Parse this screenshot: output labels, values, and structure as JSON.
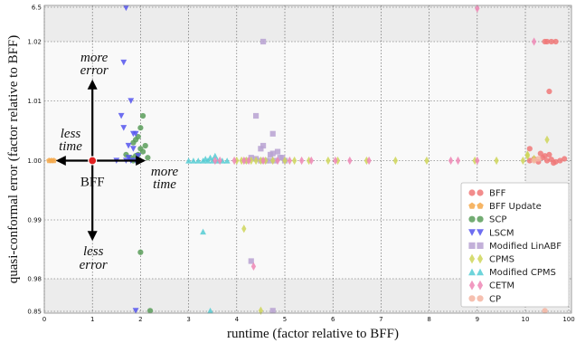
{
  "chart_data": {
    "type": "scatter",
    "xlabel": "runtime (factor relative to BFF)",
    "ylabel": "quasi-conformal error (factor relative to BFF)",
    "x_ticks": [
      {
        "value": 0,
        "label": "0"
      },
      {
        "value": 1,
        "label": "1"
      },
      {
        "value": 2,
        "label": "2"
      },
      {
        "value": 3,
        "label": "3"
      },
      {
        "value": 4,
        "label": "4"
      },
      {
        "value": 5,
        "label": "5"
      },
      {
        "value": 6,
        "label": "6"
      },
      {
        "value": 7,
        "label": "7"
      },
      {
        "value": 8,
        "label": "8"
      },
      {
        "value": 9,
        "label": "9"
      },
      {
        "value": 10,
        "label": "10"
      },
      {
        "value": 11,
        "label": "100"
      }
    ],
    "y_ticks": [
      {
        "value": 6.5,
        "label": "6.5"
      },
      {
        "value": 1.02,
        "label": "1.02"
      },
      {
        "value": 1.01,
        "label": "1.01"
      },
      {
        "value": 1.0,
        "label": "1.00"
      },
      {
        "value": 0.99,
        "label": "0.99"
      },
      {
        "value": 0.98,
        "label": "0.98"
      },
      {
        "value": 0.85,
        "label": "0.85"
      }
    ],
    "grid": true,
    "legend_position": "bottom-right",
    "annotations": {
      "center_label": "BFF",
      "up_line1": "more",
      "up_line2": "error",
      "down_line1": "less",
      "down_line2": "error",
      "left_line1": "less",
      "left_line2": "time",
      "right_line1": "more",
      "right_line2": "time"
    },
    "series": [
      {
        "name": "BFF",
        "marker": "circle",
        "color": "#f07878",
        "points": [
          [
            1.0,
            1.0
          ],
          [
            10.1,
            1.0
          ],
          [
            10.2,
            1.0003
          ],
          [
            10.3,
            0.9998
          ],
          [
            10.4,
            1.0005
          ],
          [
            10.5,
            1.0
          ],
          [
            10.6,
            1.0002
          ],
          [
            10.7,
            0.9998
          ],
          [
            10.8,
            1.0
          ],
          [
            10.9,
            1.0003
          ],
          [
            10.45,
            1.0008
          ],
          [
            10.55,
            1.001
          ],
          [
            10.35,
            1.0012
          ],
          [
            10.65,
            0.9996
          ],
          [
            10.5,
            1.0205
          ],
          [
            10.6,
            1.0205
          ],
          [
            10.7,
            1.0205
          ],
          [
            10.45,
            1.0205
          ],
          [
            10.55,
            1.0116
          ],
          [
            10.1,
            1.002
          ]
        ]
      },
      {
        "name": "BFF Update",
        "marker": "pentagon",
        "color": "#f5a84a",
        "points": [
          [
            0.1,
            1.0
          ],
          [
            0.15,
            1.0
          ],
          [
            0.2,
            1.0
          ]
        ]
      },
      {
        "name": "SCP",
        "marker": "circle",
        "color": "#5a9e5a",
        "points": [
          [
            1.85,
            1.0
          ],
          [
            1.9,
            1.0008
          ],
          [
            1.95,
            1.001
          ],
          [
            2.0,
            1.002
          ],
          [
            2.05,
            1.0015
          ],
          [
            1.8,
            1.0005
          ],
          [
            2.1,
            1.0025
          ],
          [
            1.95,
            1.004
          ],
          [
            2.0,
            1.0055
          ],
          [
            2.05,
            1.0075
          ],
          [
            1.85,
            1.003
          ],
          [
            2.0,
            0.9845
          ],
          [
            2.2,
            0.8525
          ],
          [
            1.9,
            1.0035
          ],
          [
            2.15,
            1.0005
          ],
          [
            1.7,
            1.001
          ]
        ]
      },
      {
        "name": "LSCM",
        "marker": "triangle-down",
        "color": "#5555ee",
        "points": [
          [
            1.7,
            6.4
          ],
          [
            1.65,
            1.0165
          ],
          [
            1.8,
            1.01
          ],
          [
            1.85,
            1.0045
          ],
          [
            1.9,
            1.0045
          ],
          [
            1.6,
            1.0075
          ],
          [
            1.65,
            1.0055
          ],
          [
            1.7,
            1.0
          ],
          [
            1.8,
            1.0
          ],
          [
            1.9,
            1.0
          ],
          [
            1.75,
            1.0005
          ],
          [
            1.95,
            1.0008
          ],
          [
            1.85,
            1.002
          ],
          [
            1.9,
            0.8525
          ],
          [
            1.5,
            1.0
          ],
          [
            1.75,
            1.0025
          ]
        ]
      },
      {
        "name": "Modified LinABF",
        "marker": "square",
        "color": "#b8a2d2",
        "points": [
          [
            4.55,
            1.0215
          ],
          [
            4.4,
            1.0075
          ],
          [
            4.75,
            1.0045
          ],
          [
            4.85,
            1.0015
          ],
          [
            4.5,
            1.002
          ],
          [
            4.7,
            1.001
          ],
          [
            4.3,
            1.0005
          ],
          [
            4.9,
            1.0005
          ],
          [
            4.5,
            1.0
          ],
          [
            4.6,
            1.0
          ],
          [
            4.7,
            1.0
          ],
          [
            4.8,
            1.0
          ],
          [
            5.0,
            1.0
          ],
          [
            4.2,
            1.0
          ],
          [
            4.55,
            1.0025
          ],
          [
            4.75,
            1.0012
          ],
          [
            4.4,
            1.0003
          ],
          [
            4.3,
            0.983
          ],
          [
            4.75,
            0.8525
          ],
          [
            4.95,
            1.0005
          ]
        ]
      },
      {
        "name": "CPMS",
        "marker": "diamond",
        "color": "#cfd65a",
        "points": [
          [
            4.15,
            0.9885
          ],
          [
            4.5,
            0.8525
          ],
          [
            4.0,
            1.0
          ],
          [
            4.1,
            1.0
          ],
          [
            4.2,
            1.0
          ],
          [
            4.3,
            1.0
          ],
          [
            4.4,
            1.0
          ],
          [
            4.5,
            1.0
          ],
          [
            4.6,
            1.0
          ],
          [
            4.75,
            1.0
          ],
          [
            5.0,
            1.0
          ],
          [
            5.2,
            1.0
          ],
          [
            5.5,
            1.0
          ],
          [
            5.9,
            1.0
          ],
          [
            6.1,
            1.0
          ],
          [
            6.7,
            1.0
          ],
          [
            7.3,
            1.0
          ],
          [
            7.95,
            1.0
          ],
          [
            8.95,
            1.0
          ],
          [
            9.4,
            1.0
          ],
          [
            10.05,
            1.001
          ],
          [
            10.2,
            1.0003
          ],
          [
            9.95,
            1.0
          ],
          [
            10.05,
            1.0008
          ],
          [
            10.5,
            1.0035
          ]
        ]
      },
      {
        "name": "Modified CPMS",
        "marker": "triangle-up",
        "color": "#55ccd4",
        "points": [
          [
            3.3,
            0.988
          ],
          [
            3.45,
            0.8525
          ],
          [
            3.0,
            1.0
          ],
          [
            3.1,
            1.0
          ],
          [
            3.2,
            1.0
          ],
          [
            3.3,
            1.0
          ],
          [
            3.4,
            1.0
          ],
          [
            3.5,
            1.0
          ],
          [
            3.6,
            1.0
          ],
          [
            3.7,
            1.0
          ],
          [
            3.8,
            1.0
          ],
          [
            3.45,
            1.0005
          ],
          [
            3.35,
            1.0003
          ],
          [
            3.55,
            1.0008
          ]
        ]
      },
      {
        "name": "CETM",
        "marker": "diamond",
        "color": "#ef87b5",
        "points": [
          [
            4.35,
            0.9821
          ],
          [
            3.55,
            1.0
          ],
          [
            3.65,
            1.0
          ],
          [
            3.95,
            1.0
          ],
          [
            4.15,
            1.0
          ],
          [
            4.25,
            1.0
          ],
          [
            4.55,
            1.0
          ],
          [
            4.85,
            1.0
          ],
          [
            5.1,
            1.0
          ],
          [
            5.35,
            1.0
          ],
          [
            5.55,
            1.0
          ],
          [
            6.05,
            1.0
          ],
          [
            6.35,
            1.0
          ],
          [
            6.75,
            1.0
          ],
          [
            8.45,
            1.0
          ],
          [
            9.0,
            1.0
          ],
          [
            9.0,
            6.3
          ],
          [
            10.2,
            1.022
          ],
          [
            8.6,
            1.0
          ]
        ]
      },
      {
        "name": "CP",
        "marker": "circle",
        "color": "#f5b5a2",
        "points": [
          [
            10.45,
            0.8525
          ],
          [
            10.2,
            1.0
          ],
          [
            10.3,
            1.0003
          ]
        ]
      }
    ]
  }
}
